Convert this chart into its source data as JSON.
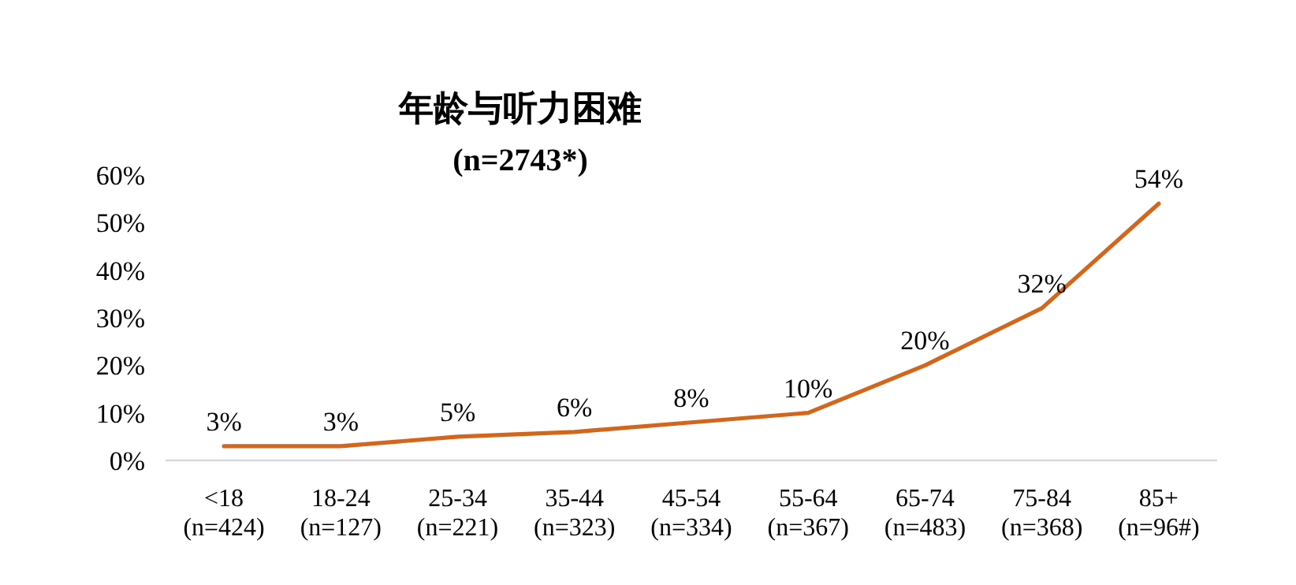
{
  "chart_data": {
    "type": "line",
    "title": "年龄与听力困难",
    "subtitle": "(n=2743*)",
    "categories": [
      "<18\n(n=424)",
      "18-24\n(n=127)",
      "25-34\n(n=221)",
      "35-44\n(n=323)",
      "45-54\n(n=334)",
      "55-64\n(n=367)",
      "65-74\n(n=483)",
      "75-84\n(n=368)",
      "85+\n(n=96#)"
    ],
    "series": [
      {
        "color": "#d4661c",
        "values": [
          3,
          3,
          5,
          6,
          8,
          10,
          20,
          32,
          54
        ],
        "value_labels": [
          "3%",
          "3%",
          "5%",
          "6%",
          "8%",
          "10%",
          "20%",
          "32%",
          "54%"
        ]
      }
    ],
    "ylim": [
      0,
      60
    ],
    "yticks": [
      {
        "value": 0,
        "label": "0%"
      },
      {
        "value": 10,
        "label": "10%"
      },
      {
        "value": 20,
        "label": "20%"
      },
      {
        "value": 30,
        "label": "30%"
      },
      {
        "value": 40,
        "label": "40%"
      },
      {
        "value": 50,
        "label": "50%"
      },
      {
        "value": 60,
        "label": "60%"
      }
    ]
  }
}
